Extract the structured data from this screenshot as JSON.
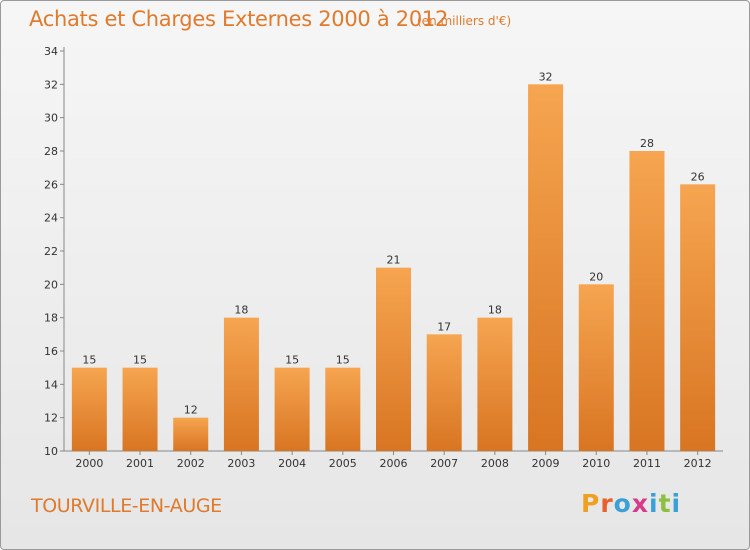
{
  "header": {
    "title": "Achats et Charges Externes 2000 à 2012",
    "subtitle": "(en milliers d'€)"
  },
  "footer": {
    "city": "TOURVILLE-EN-AUGE",
    "logo": "Proxiti"
  },
  "colors": {
    "title": "#e07a2c",
    "bar_light": "#f6a550",
    "bar_dark": "#d87522",
    "logo_letters": [
      "#f0a020",
      "#e8602c",
      "#3aa0d8",
      "#d63a8a",
      "#3aa0d8",
      "#8cc040",
      "#3aa0d8"
    ]
  },
  "chart_data": {
    "type": "bar",
    "categories": [
      "2000",
      "2001",
      "2002",
      "2003",
      "2004",
      "2005",
      "2006",
      "2007",
      "2008",
      "2009",
      "2010",
      "2011",
      "2012"
    ],
    "values": [
      15,
      15,
      12,
      18,
      15,
      15,
      21,
      17,
      18,
      32,
      20,
      28,
      26
    ],
    "ylim": [
      10,
      34
    ],
    "yticks": [
      10,
      12,
      14,
      16,
      18,
      20,
      22,
      24,
      26,
      28,
      30,
      32,
      34
    ],
    "grid": false,
    "data_labels": true
  }
}
